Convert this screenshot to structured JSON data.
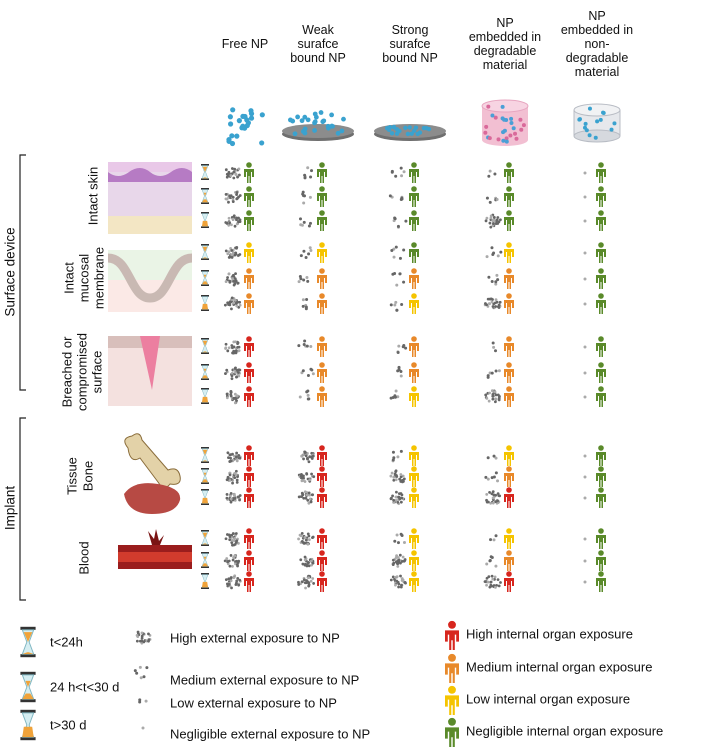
{
  "columns": [
    "Free NP",
    "Weak surafce bound NP",
    "Strong surafce bound NP",
    "NP embedded in degradable material",
    "NP embedded in non-degradable material"
  ],
  "groups": [
    {
      "label": "Surface device",
      "rows": [
        "Intact skin",
        "Intact mucosal membrane",
        "Breached or compromised surface"
      ]
    },
    {
      "label": "Implant",
      "tissue_label": "Tissue",
      "rows": [
        "Bone",
        "Blood"
      ]
    }
  ],
  "legend": {
    "time": [
      "t<24h",
      "24 h<t<30 d",
      "t>30 d"
    ],
    "external": [
      "High external exposure to NP",
      "Medium external exposure to NP",
      "Low external exposure to NP",
      "Negligible  external exposure to NP"
    ],
    "internal": [
      "High internal organ exposure",
      "Medium  internal organ exposure",
      "Low  internal organ exposure",
      "Negligible  internal organ exposure"
    ]
  }
}
